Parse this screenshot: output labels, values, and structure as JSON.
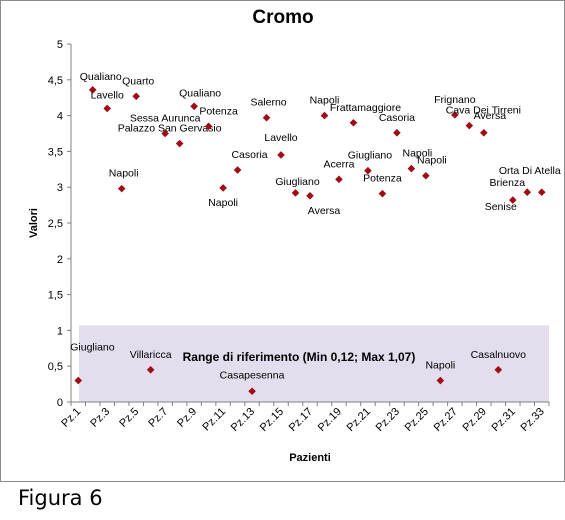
{
  "caption": "Figura 6",
  "chart_data": {
    "type": "scatter",
    "title": "Cromo",
    "xlabel": "Pazienti",
    "ylabel": "Valori",
    "ylim": [
      0,
      5
    ],
    "yticks": [
      "0",
      "0,5",
      "1",
      "1,5",
      "2",
      "2,5",
      "3",
      "3,5",
      "4",
      "4,5",
      "5"
    ],
    "xlim": [
      1,
      33
    ],
    "xtick_labels": [
      "Pz.1",
      "Pz.3",
      "Pz.5",
      "Pz.7",
      "Pz.9",
      "Pz.11",
      "Pz.13",
      "Pz.15",
      "Pz.17",
      "Pz.19",
      "Pz.21",
      "Pz.23",
      "Pz.25",
      "Pz.27",
      "Pz.29",
      "Pz.31",
      "Pz.33"
    ],
    "grid": false,
    "marker_color": "#a00c14",
    "range_band": {
      "label": "Range di riferimento  (Min 0,12; Max 1,07)",
      "min": 0.12,
      "max": 1.07,
      "color": "#e3dded"
    },
    "points": [
      {
        "x": 1,
        "y": 0.3,
        "label": "Giugliano"
      },
      {
        "x": 2,
        "y": 4.36,
        "label": "Qualiano"
      },
      {
        "x": 3,
        "y": 4.1,
        "label": "Lavello"
      },
      {
        "x": 4,
        "y": 2.98,
        "label": "Napoli"
      },
      {
        "x": 5,
        "y": 4.27,
        "label": "Quarto"
      },
      {
        "x": 6,
        "y": 0.45,
        "label": "Villaricca"
      },
      {
        "x": 7,
        "y": 3.75,
        "label": "Sessa Aurunca"
      },
      {
        "x": 8,
        "y": 3.61,
        "label": "Palazzo San Gervasio"
      },
      {
        "x": 9,
        "y": 4.13,
        "label": "Qualiano"
      },
      {
        "x": 10,
        "y": 3.85,
        "label": "Potenza"
      },
      {
        "x": 11,
        "y": 2.99,
        "label": "Napoli"
      },
      {
        "x": 12,
        "y": 3.24,
        "label": "Casoria"
      },
      {
        "x": 13,
        "y": 0.15,
        "label": "Casapesenna"
      },
      {
        "x": 14,
        "y": 3.97,
        "label": "Salerno"
      },
      {
        "x": 15,
        "y": 3.45,
        "label": "Lavello"
      },
      {
        "x": 16,
        "y": 2.92,
        "label": "Giugliano"
      },
      {
        "x": 17,
        "y": 2.88,
        "label": "Aversa"
      },
      {
        "x": 18,
        "y": 4.0,
        "label": "Napoli"
      },
      {
        "x": 19,
        "y": 3.11,
        "label": "Acerra"
      },
      {
        "x": 20,
        "y": 3.9,
        "label": "Frattamaggiore"
      },
      {
        "x": 21,
        "y": 3.23,
        "label": "Giugliano"
      },
      {
        "x": 22,
        "y": 2.91,
        "label": "Potenza"
      },
      {
        "x": 23,
        "y": 3.76,
        "label": "Casoria"
      },
      {
        "x": 24,
        "y": 3.26,
        "label": "Napoli"
      },
      {
        "x": 25,
        "y": 3.16,
        "label": "Napoli"
      },
      {
        "x": 26,
        "y": 0.3,
        "label": "Napoli"
      },
      {
        "x": 27,
        "y": 4.01,
        "label": "Frignano"
      },
      {
        "x": 28,
        "y": 3.86,
        "label": "Cava Dei Tirreni"
      },
      {
        "x": 29,
        "y": 3.76,
        "label": "Aversa"
      },
      {
        "x": 30,
        "y": 0.45,
        "label": "Casalnuovo"
      },
      {
        "x": 31,
        "y": 2.82,
        "label": "Senise"
      },
      {
        "x": 32,
        "y": 2.93,
        "label": "Brienza"
      },
      {
        "x": 33,
        "y": 2.93,
        "label": "Orta Di Atella"
      }
    ]
  }
}
